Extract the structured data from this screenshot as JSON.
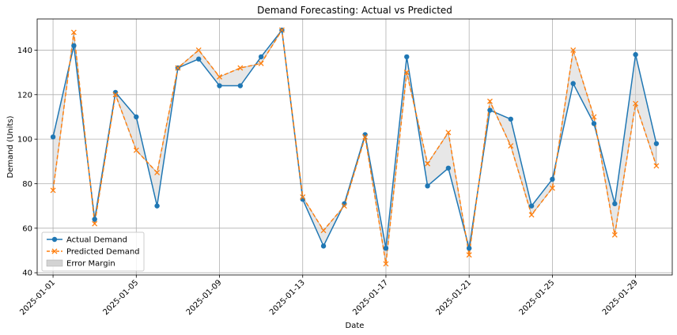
{
  "chart_data": {
    "type": "line",
    "title": "Demand Forecasting: Actual vs Predicted",
    "xlabel": "Date",
    "ylabel": "Demand (Units)",
    "x": [
      "2025-01-01",
      "2025-01-02",
      "2025-01-03",
      "2025-01-04",
      "2025-01-05",
      "2025-01-06",
      "2025-01-07",
      "2025-01-08",
      "2025-01-09",
      "2025-01-10",
      "2025-01-11",
      "2025-01-12",
      "2025-01-13",
      "2025-01-14",
      "2025-01-15",
      "2025-01-16",
      "2025-01-17",
      "2025-01-18",
      "2025-01-19",
      "2025-01-20",
      "2025-01-21",
      "2025-01-22",
      "2025-01-23",
      "2025-01-24",
      "2025-01-25",
      "2025-01-26",
      "2025-01-27",
      "2025-01-28",
      "2025-01-29",
      "2025-01-30"
    ],
    "x_tick_labels": [
      "2025-01-01",
      "2025-01-05",
      "2025-01-09",
      "2025-01-13",
      "2025-01-17",
      "2025-01-21",
      "2025-01-25",
      "2025-01-29"
    ],
    "y_ticks": [
      40,
      60,
      80,
      100,
      120,
      140
    ],
    "ylim": [
      39,
      154
    ],
    "grid": true,
    "legend_position": "lower-left",
    "series": [
      {
        "name": "Actual Demand",
        "color": "#1f77b4",
        "marker": "circle",
        "line_style": "solid",
        "values": [
          101,
          142,
          64,
          121,
          110,
          70,
          132,
          136,
          124,
          124,
          137,
          149,
          73,
          52,
          71,
          102,
          51,
          137,
          79,
          87,
          51,
          113,
          109,
          70,
          82,
          125,
          107,
          71,
          138,
          98
        ]
      },
      {
        "name": "Predicted Demand",
        "color": "#ff7f0e",
        "marker": "x",
        "line_style": "dashed",
        "values": [
          77,
          148,
          62,
          120,
          95,
          85,
          132,
          140,
          128,
          132,
          134,
          149,
          74,
          59,
          70,
          101,
          44,
          130,
          89,
          103,
          48,
          117,
          97,
          66,
          78,
          140,
          110,
          57,
          116,
          88
        ]
      }
    ],
    "error_band": {
      "name": "Error Margin",
      "color": "#d3d3d3"
    }
  }
}
